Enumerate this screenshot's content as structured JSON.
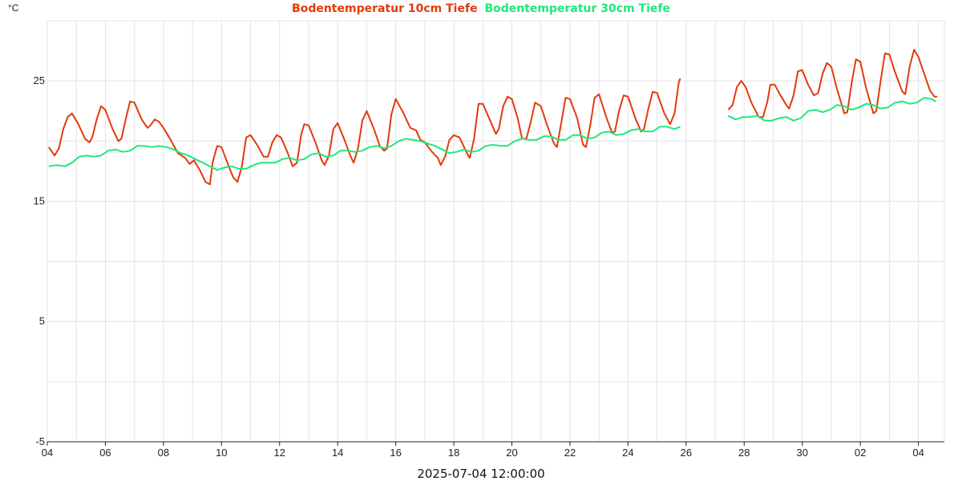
{
  "chart_data": {
    "type": "line",
    "title": "",
    "ylabel": "°C",
    "xlabel": "2025-07-04 12:00:00",
    "ylim": [
      -5,
      30
    ],
    "yticks": [
      -5,
      5,
      15,
      25
    ],
    "x_unit": "days",
    "x_start_label": "04",
    "xlim": [
      0,
      30.6
    ],
    "xticks": [
      {
        "x": 0,
        "label": "04"
      },
      {
        "x": 2,
        "label": "06"
      },
      {
        "x": 4,
        "label": "08"
      },
      {
        "x": 6,
        "label": "10"
      },
      {
        "x": 8,
        "label": "12"
      },
      {
        "x": 10,
        "label": "14"
      },
      {
        "x": 12,
        "label": "16"
      },
      {
        "x": 14,
        "label": "18"
      },
      {
        "x": 16,
        "label": "20"
      },
      {
        "x": 18,
        "label": "22"
      },
      {
        "x": 20,
        "label": "24"
      },
      {
        "x": 22,
        "label": "26"
      },
      {
        "x": 24,
        "label": "28"
      },
      {
        "x": 26,
        "label": "30"
      },
      {
        "x": 28,
        "label": "02"
      },
      {
        "x": 30,
        "label": "04"
      }
    ],
    "gap": [
      21.8,
      23.4
    ],
    "grid": true,
    "legend_position": "top-center",
    "series": [
      {
        "name": "Bodentemperatur 10cm Tiefe",
        "color": "#e23a0c",
        "points": [
          [
            0.05,
            19.5
          ],
          [
            0.25,
            18.8
          ],
          [
            0.4,
            19.4
          ],
          [
            0.55,
            21.0
          ],
          [
            0.7,
            22.0
          ],
          [
            0.85,
            22.3
          ],
          [
            1.05,
            21.5
          ],
          [
            1.3,
            20.2
          ],
          [
            1.45,
            19.9
          ],
          [
            1.55,
            20.3
          ],
          [
            1.7,
            21.8
          ],
          [
            1.85,
            22.9
          ],
          [
            2.0,
            22.6
          ],
          [
            2.25,
            21.0
          ],
          [
            2.45,
            20.0
          ],
          [
            2.55,
            20.2
          ],
          [
            2.7,
            21.8
          ],
          [
            2.85,
            23.3
          ],
          [
            3.0,
            23.2
          ],
          [
            3.25,
            21.8
          ],
          [
            3.45,
            21.1
          ],
          [
            3.55,
            21.3
          ],
          [
            3.7,
            21.8
          ],
          [
            3.85,
            21.6
          ],
          [
            4.0,
            21.1
          ],
          [
            4.25,
            20.1
          ],
          [
            4.5,
            19.0
          ],
          [
            4.75,
            18.6
          ],
          [
            4.9,
            18.1
          ],
          [
            5.05,
            18.4
          ],
          [
            5.25,
            17.6
          ],
          [
            5.45,
            16.6
          ],
          [
            5.6,
            16.4
          ],
          [
            5.7,
            18.3
          ],
          [
            5.85,
            19.6
          ],
          [
            6.0,
            19.5
          ],
          [
            6.2,
            18.2
          ],
          [
            6.4,
            17.0
          ],
          [
            6.55,
            16.6
          ],
          [
            6.7,
            17.9
          ],
          [
            6.85,
            20.3
          ],
          [
            7.0,
            20.5
          ],
          [
            7.25,
            19.6
          ],
          [
            7.45,
            18.7
          ],
          [
            7.6,
            18.7
          ],
          [
            7.75,
            19.9
          ],
          [
            7.9,
            20.5
          ],
          [
            8.05,
            20.3
          ],
          [
            8.25,
            19.2
          ],
          [
            8.45,
            17.9
          ],
          [
            8.6,
            18.2
          ],
          [
            8.75,
            20.6
          ],
          [
            8.85,
            21.4
          ],
          [
            9.0,
            21.3
          ],
          [
            9.25,
            19.8
          ],
          [
            9.45,
            18.4
          ],
          [
            9.55,
            18.0
          ],
          [
            9.7,
            18.8
          ],
          [
            9.85,
            21.0
          ],
          [
            10.0,
            21.5
          ],
          [
            10.25,
            20.0
          ],
          [
            10.45,
            18.7
          ],
          [
            10.55,
            18.2
          ],
          [
            10.7,
            19.4
          ],
          [
            10.85,
            21.7
          ],
          [
            11.0,
            22.5
          ],
          [
            11.25,
            21.0
          ],
          [
            11.45,
            19.6
          ],
          [
            11.6,
            19.2
          ],
          [
            11.7,
            19.4
          ],
          [
            11.85,
            22.2
          ],
          [
            12.0,
            23.5
          ],
          [
            12.25,
            22.4
          ],
          [
            12.5,
            21.1
          ],
          [
            12.7,
            20.9
          ],
          [
            12.85,
            20.1
          ],
          [
            13.0,
            19.9
          ],
          [
            13.25,
            19.1
          ],
          [
            13.45,
            18.6
          ],
          [
            13.55,
            18.0
          ],
          [
            13.7,
            18.7
          ],
          [
            13.85,
            20.1
          ],
          [
            14.0,
            20.5
          ],
          [
            14.2,
            20.3
          ],
          [
            14.45,
            19.0
          ],
          [
            14.55,
            18.6
          ],
          [
            14.7,
            20.2
          ],
          [
            14.85,
            23.1
          ],
          [
            15.0,
            23.1
          ],
          [
            15.25,
            21.7
          ],
          [
            15.45,
            20.6
          ],
          [
            15.55,
            21.0
          ],
          [
            15.7,
            22.9
          ],
          [
            15.85,
            23.7
          ],
          [
            16.0,
            23.5
          ],
          [
            16.2,
            21.9
          ],
          [
            16.35,
            20.2
          ],
          [
            16.5,
            20.2
          ],
          [
            16.65,
            21.6
          ],
          [
            16.8,
            23.2
          ],
          [
            17.0,
            22.9
          ],
          [
            17.2,
            21.4
          ],
          [
            17.45,
            19.8
          ],
          [
            17.55,
            19.5
          ],
          [
            17.7,
            21.5
          ],
          [
            17.85,
            23.6
          ],
          [
            18.0,
            23.5
          ],
          [
            18.25,
            21.9
          ],
          [
            18.45,
            19.7
          ],
          [
            18.55,
            19.5
          ],
          [
            18.7,
            21.3
          ],
          [
            18.85,
            23.6
          ],
          [
            19.0,
            23.9
          ],
          [
            19.25,
            22.0
          ],
          [
            19.45,
            20.7
          ],
          [
            19.55,
            20.8
          ],
          [
            19.7,
            22.6
          ],
          [
            19.85,
            23.8
          ],
          [
            20.0,
            23.7
          ],
          [
            20.25,
            21.9
          ],
          [
            20.45,
            20.8
          ],
          [
            20.55,
            21.0
          ],
          [
            20.7,
            22.7
          ],
          [
            20.85,
            24.1
          ],
          [
            21.0,
            24.0
          ],
          [
            21.25,
            22.3
          ],
          [
            21.45,
            21.4
          ],
          [
            21.6,
            22.3
          ],
          [
            21.75,
            24.9
          ],
          [
            21.8,
            25.2
          ]
        ]
      },
      {
        "name": "Bodentemperatur 30cm Tiefe",
        "color": "#1ee87a",
        "points": [
          [
            0.05,
            17.9
          ],
          [
            0.3,
            18.0
          ],
          [
            0.6,
            17.9
          ],
          [
            0.85,
            18.2
          ],
          [
            1.1,
            18.7
          ],
          [
            1.35,
            18.8
          ],
          [
            1.6,
            18.7
          ],
          [
            1.85,
            18.8
          ],
          [
            2.1,
            19.2
          ],
          [
            2.35,
            19.3
          ],
          [
            2.6,
            19.1
          ],
          [
            2.85,
            19.2
          ],
          [
            3.1,
            19.6
          ],
          [
            3.35,
            19.6
          ],
          [
            3.6,
            19.5
          ],
          [
            3.85,
            19.6
          ],
          [
            4.1,
            19.5
          ],
          [
            4.35,
            19.3
          ],
          [
            4.6,
            19.0
          ],
          [
            4.85,
            18.8
          ],
          [
            5.1,
            18.5
          ],
          [
            5.35,
            18.2
          ],
          [
            5.6,
            17.9
          ],
          [
            5.85,
            17.6
          ],
          [
            6.1,
            17.8
          ],
          [
            6.35,
            17.9
          ],
          [
            6.6,
            17.7
          ],
          [
            6.85,
            17.7
          ],
          [
            7.1,
            18.0
          ],
          [
            7.35,
            18.2
          ],
          [
            7.6,
            18.2
          ],
          [
            7.85,
            18.2
          ],
          [
            8.1,
            18.5
          ],
          [
            8.35,
            18.6
          ],
          [
            8.6,
            18.4
          ],
          [
            8.85,
            18.5
          ],
          [
            9.1,
            18.9
          ],
          [
            9.35,
            19.0
          ],
          [
            9.6,
            18.7
          ],
          [
            9.85,
            18.8
          ],
          [
            10.1,
            19.2
          ],
          [
            10.35,
            19.2
          ],
          [
            10.6,
            19.1
          ],
          [
            10.85,
            19.2
          ],
          [
            11.1,
            19.5
          ],
          [
            11.35,
            19.6
          ],
          [
            11.6,
            19.4
          ],
          [
            11.85,
            19.6
          ],
          [
            12.1,
            20.0
          ],
          [
            12.35,
            20.2
          ],
          [
            12.6,
            20.1
          ],
          [
            12.85,
            20.0
          ],
          [
            13.1,
            19.8
          ],
          [
            13.35,
            19.6
          ],
          [
            13.6,
            19.3
          ],
          [
            13.85,
            19.0
          ],
          [
            14.1,
            19.1
          ],
          [
            14.35,
            19.3
          ],
          [
            14.6,
            19.1
          ],
          [
            14.85,
            19.2
          ],
          [
            15.1,
            19.6
          ],
          [
            15.35,
            19.7
          ],
          [
            15.6,
            19.6
          ],
          [
            15.85,
            19.6
          ],
          [
            16.1,
            20.0
          ],
          [
            16.35,
            20.2
          ],
          [
            16.6,
            20.1
          ],
          [
            16.85,
            20.1
          ],
          [
            17.1,
            20.4
          ],
          [
            17.35,
            20.4
          ],
          [
            17.6,
            20.1
          ],
          [
            17.85,
            20.1
          ],
          [
            18.1,
            20.5
          ],
          [
            18.35,
            20.5
          ],
          [
            18.6,
            20.2
          ],
          [
            18.85,
            20.3
          ],
          [
            19.1,
            20.7
          ],
          [
            19.35,
            20.8
          ],
          [
            19.6,
            20.5
          ],
          [
            19.85,
            20.6
          ],
          [
            20.1,
            20.9
          ],
          [
            20.35,
            21.0
          ],
          [
            20.6,
            20.8
          ],
          [
            20.85,
            20.8
          ],
          [
            21.1,
            21.2
          ],
          [
            21.35,
            21.2
          ],
          [
            21.6,
            21.0
          ],
          [
            21.8,
            21.2
          ]
        ]
      },
      {
        "name": "Bodentemperatur 10cm Tiefe",
        "color": "#e23a0c",
        "points": [
          [
            23.45,
            22.6
          ],
          [
            23.6,
            23.0
          ],
          [
            23.75,
            24.5
          ],
          [
            23.9,
            25.0
          ],
          [
            24.05,
            24.5
          ],
          [
            24.25,
            23.2
          ],
          [
            24.5,
            22.0
          ],
          [
            24.65,
            22.0
          ],
          [
            24.8,
            23.3
          ],
          [
            24.9,
            24.7
          ],
          [
            25.05,
            24.7
          ],
          [
            25.25,
            23.8
          ],
          [
            25.45,
            23.0
          ],
          [
            25.55,
            22.7
          ],
          [
            25.7,
            23.8
          ],
          [
            25.85,
            25.8
          ],
          [
            26.0,
            25.9
          ],
          [
            26.2,
            24.7
          ],
          [
            26.4,
            23.8
          ],
          [
            26.55,
            24.0
          ],
          [
            26.7,
            25.6
          ],
          [
            26.85,
            26.5
          ],
          [
            27.0,
            26.2
          ],
          [
            27.2,
            24.3
          ],
          [
            27.45,
            22.3
          ],
          [
            27.55,
            22.4
          ],
          [
            27.7,
            24.8
          ],
          [
            27.85,
            26.8
          ],
          [
            28.0,
            26.6
          ],
          [
            28.2,
            24.4
          ],
          [
            28.45,
            22.3
          ],
          [
            28.55,
            22.5
          ],
          [
            28.7,
            25.0
          ],
          [
            28.85,
            27.3
          ],
          [
            29.0,
            27.2
          ],
          [
            29.2,
            25.7
          ],
          [
            29.45,
            24.1
          ],
          [
            29.55,
            23.9
          ],
          [
            29.7,
            26.2
          ],
          [
            29.85,
            27.6
          ],
          [
            30.0,
            27.0
          ],
          [
            30.2,
            25.6
          ],
          [
            30.4,
            24.2
          ],
          [
            30.55,
            23.7
          ],
          [
            30.65,
            23.7
          ]
        ]
      },
      {
        "name": "Bodentemperatur 30cm Tiefe",
        "color": "#1ee87a",
        "points": [
          [
            23.45,
            22.1
          ],
          [
            23.7,
            21.8
          ],
          [
            23.95,
            22.0
          ],
          [
            24.2,
            22.0
          ],
          [
            24.45,
            22.1
          ],
          [
            24.7,
            21.7
          ],
          [
            24.95,
            21.7
          ],
          [
            25.2,
            21.9
          ],
          [
            25.45,
            22.0
          ],
          [
            25.7,
            21.7
          ],
          [
            25.95,
            21.9
          ],
          [
            26.2,
            22.5
          ],
          [
            26.45,
            22.6
          ],
          [
            26.7,
            22.4
          ],
          [
            26.95,
            22.6
          ],
          [
            27.2,
            23.0
          ],
          [
            27.45,
            22.9
          ],
          [
            27.7,
            22.6
          ],
          [
            27.95,
            22.8
          ],
          [
            28.2,
            23.1
          ],
          [
            28.45,
            23.0
          ],
          [
            28.7,
            22.7
          ],
          [
            28.95,
            22.8
          ],
          [
            29.2,
            23.2
          ],
          [
            29.45,
            23.3
          ],
          [
            29.7,
            23.1
          ],
          [
            29.95,
            23.2
          ],
          [
            30.2,
            23.6
          ],
          [
            30.45,
            23.5
          ],
          [
            30.6,
            23.3
          ]
        ]
      }
    ]
  }
}
